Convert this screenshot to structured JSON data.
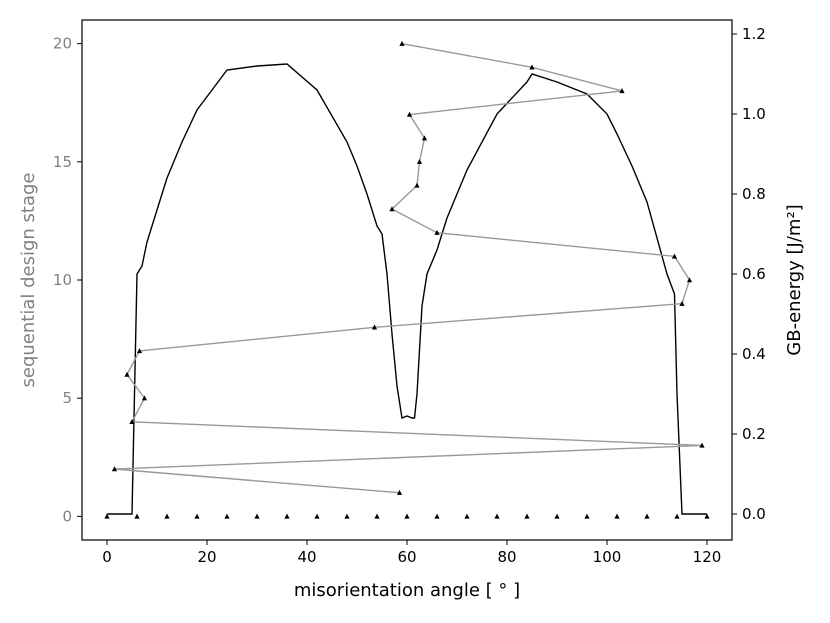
{
  "chart_data": {
    "type": "line",
    "xlabel": "misorientation angle [$^\\circ$]",
    "xlabel_display": "misorientation angle [ ° ]",
    "ylabel_left": "sequential design stage",
    "ylabel_right": "GB-energy [J/m²]",
    "xlim": [
      -5,
      125
    ],
    "ylim_left": [
      -1,
      21
    ],
    "ylim_right": [
      -0.065,
      1.235
    ],
    "xticks": [
      0,
      20,
      40,
      60,
      80,
      100,
      120
    ],
    "yticks_left": [
      0,
      5,
      10,
      15,
      20
    ],
    "yticks_right": [
      0.0,
      0.2,
      0.4,
      0.6,
      0.8,
      1.0,
      1.2
    ],
    "ytick_labels_right": [
      "0.0",
      "0.2",
      "0.4",
      "0.6",
      "0.8",
      "1.0",
      "1.2"
    ],
    "grid": false,
    "colors": {
      "energy": "#000000",
      "stages": "#999999",
      "markers": "#000000",
      "left_axis_text": "#808080"
    },
    "series": [
      {
        "axis": "right",
        "style": "line",
        "x": [
          0,
          5,
          5.5,
          6,
          7,
          8,
          10,
          12,
          15,
          18,
          21,
          24,
          30,
          36,
          42,
          48,
          50,
          52,
          54,
          55,
          56,
          57,
          58,
          59,
          60,
          61,
          61.5,
          62,
          63,
          64,
          66,
          68,
          72,
          78,
          84,
          85,
          90,
          96,
          100,
          102,
          105,
          108,
          112,
          113.5,
          114,
          115,
          120
        ],
        "y": [
          0.0,
          0.0,
          0.3,
          0.6,
          0.62,
          0.68,
          0.76,
          0.84,
          0.93,
          1.01,
          1.06,
          1.11,
          1.12,
          1.125,
          1.06,
          0.93,
          0.87,
          0.8,
          0.72,
          0.7,
          0.6,
          0.45,
          0.32,
          0.24,
          0.245,
          0.24,
          0.24,
          0.3,
          0.52,
          0.6,
          0.66,
          0.74,
          0.86,
          1.0,
          1.08,
          1.1,
          1.08,
          1.05,
          1.0,
          0.95,
          0.87,
          0.78,
          0.6,
          0.55,
          0.3,
          0.0,
          0.0
        ]
      },
      {
        "axis": "left",
        "style": "line-markers",
        "x": [
          58.5,
          1.5,
          119,
          5,
          7.5,
          4,
          6.5,
          53.5,
          115,
          116.5,
          113.5,
          66,
          57,
          62,
          62.5,
          63.5,
          60.5,
          103,
          85,
          59
        ],
        "y": [
          1,
          2,
          3,
          4,
          5,
          6,
          7,
          8,
          9,
          10,
          11,
          12,
          13,
          14,
          15,
          16,
          17,
          18,
          19,
          20
        ]
      },
      {
        "axis": "left",
        "style": "markers",
        "x": [
          0,
          6,
          12,
          18,
          24,
          30,
          36,
          42,
          48,
          54,
          60,
          66,
          72,
          78,
          84,
          90,
          96,
          102,
          108,
          114,
          120
        ],
        "y": [
          0,
          0,
          0,
          0,
          0,
          0,
          0,
          0,
          0,
          0,
          0,
          0,
          0,
          0,
          0,
          0,
          0,
          0,
          0,
          0,
          0
        ]
      }
    ]
  }
}
